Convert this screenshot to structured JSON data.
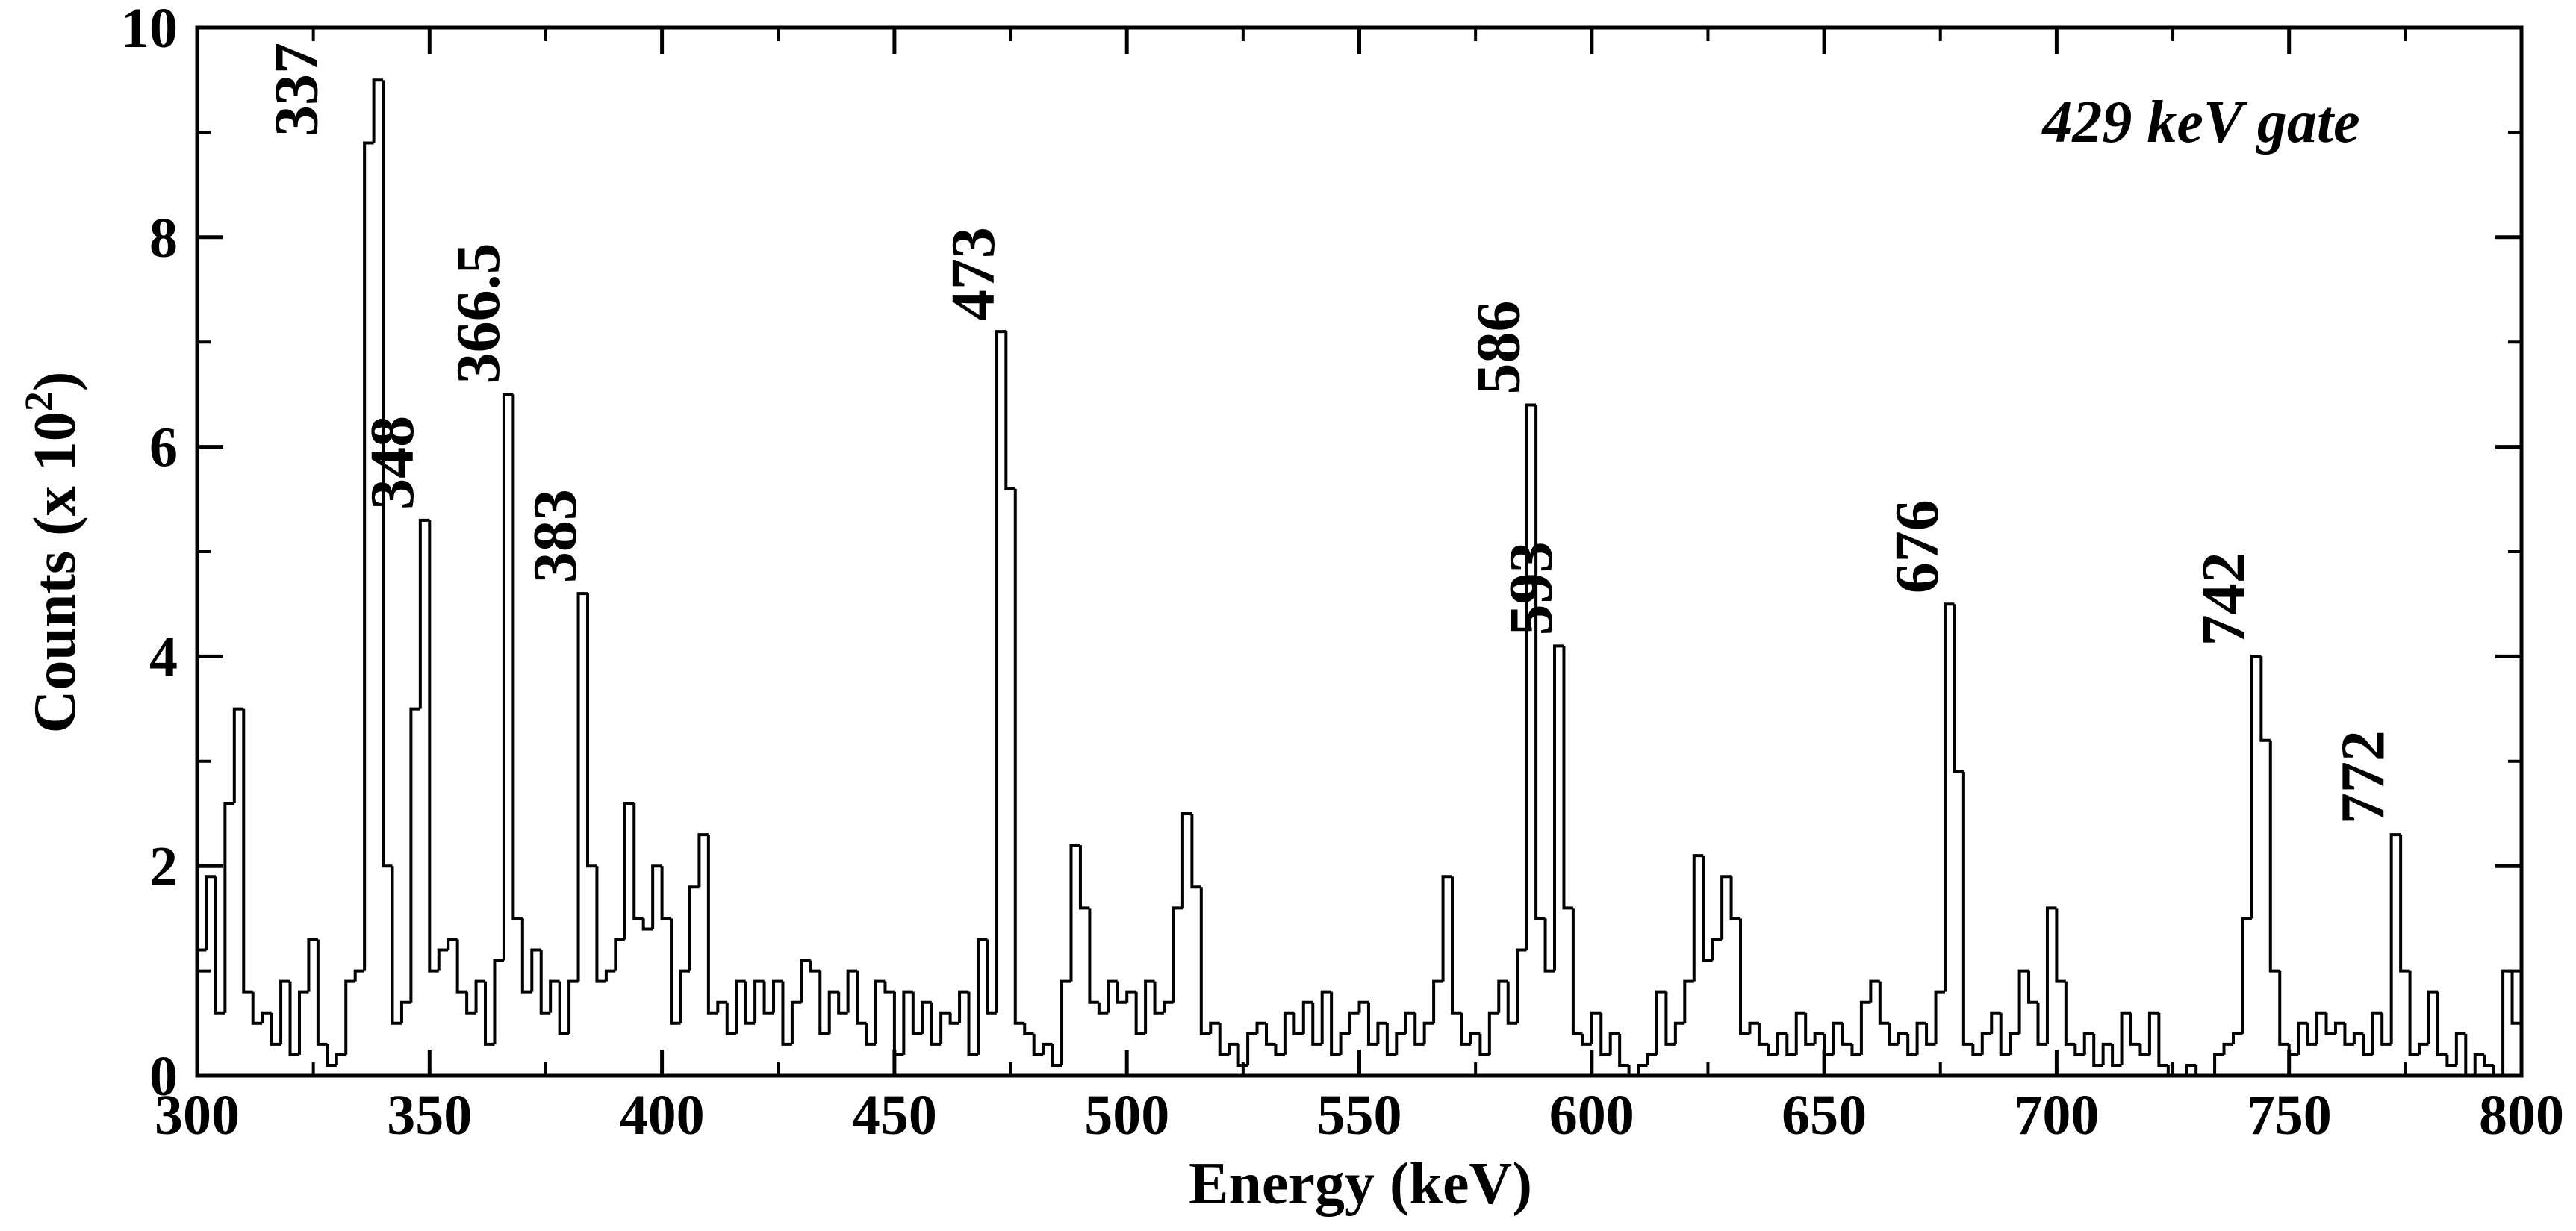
{
  "chart_data": {
    "type": "histogram",
    "xlabel": "Energy (keV)",
    "ylabel": {
      "text": "Counts (x 10",
      "sup": "2",
      "close": ")"
    },
    "gate_label": {
      "text": "429 keV gate",
      "color": "#0000ff"
    },
    "color": "#000000",
    "xlim": [
      300,
      800
    ],
    "ylim": [
      0,
      10
    ],
    "xticks": [
      300,
      350,
      400,
      450,
      500,
      550,
      600,
      650,
      700,
      750,
      800
    ],
    "xminor": [
      325,
      375,
      425,
      475,
      525,
      575,
      625,
      675,
      725,
      775
    ],
    "yticks": [
      0,
      2,
      4,
      6,
      8,
      10
    ],
    "yminor": [
      1,
      3,
      5,
      7,
      9
    ],
    "annotations": [
      {
        "text": "337",
        "color": "#000000"
      },
      {
        "text": "348",
        "color": "#ff0000"
      },
      {
        "text": "366.5",
        "color": "#ff0000"
      },
      {
        "text": "383",
        "color": "#ff0000"
      },
      {
        "text": "473",
        "color": "#000000"
      },
      {
        "text": "586",
        "color": "#000000"
      },
      {
        "text": "593",
        "color": "#ff0000"
      },
      {
        "text": "676",
        "color": "#000000"
      },
      {
        "text": "742",
        "color": "#000000"
      },
      {
        "text": "772",
        "color": "#ff0000"
      }
    ],
    "bins": [
      300,
      302,
      304,
      306,
      308,
      310,
      312,
      314,
      316,
      318,
      320,
      322,
      324,
      326,
      328,
      330,
      332,
      334,
      336,
      338,
      340,
      342,
      344,
      346,
      348,
      350,
      352,
      354,
      356,
      358,
      360,
      362,
      364,
      366,
      368,
      370,
      372,
      374,
      376,
      378,
      380,
      382,
      384,
      386,
      388,
      390,
      392,
      394,
      396,
      398,
      400,
      402,
      404,
      406,
      408,
      410,
      412,
      414,
      416,
      418,
      420,
      422,
      424,
      426,
      428,
      430,
      432,
      434,
      436,
      438,
      440,
      442,
      444,
      446,
      448,
      450,
      452,
      454,
      456,
      458,
      460,
      462,
      464,
      466,
      468,
      470,
      472,
      474,
      476,
      478,
      480,
      482,
      484,
      486,
      488,
      490,
      492,
      494,
      496,
      498,
      500,
      502,
      504,
      506,
      508,
      510,
      512,
      514,
      516,
      518,
      520,
      522,
      524,
      526,
      528,
      530,
      532,
      534,
      536,
      538,
      540,
      542,
      544,
      546,
      548,
      550,
      552,
      554,
      556,
      558,
      560,
      562,
      564,
      566,
      568,
      570,
      572,
      574,
      576,
      578,
      580,
      582,
      584,
      586,
      588,
      590,
      592,
      594,
      596,
      598,
      600,
      602,
      604,
      606,
      608,
      610,
      612,
      614,
      616,
      618,
      620,
      622,
      624,
      626,
      628,
      630,
      632,
      634,
      636,
      638,
      640,
      642,
      644,
      646,
      648,
      650,
      652,
      654,
      656,
      658,
      660,
      662,
      664,
      666,
      668,
      670,
      672,
      674,
      676,
      678,
      680,
      682,
      684,
      686,
      688,
      690,
      692,
      694,
      696,
      698,
      700,
      702,
      704,
      706,
      708,
      710,
      712,
      714,
      716,
      718,
      720,
      722,
      724,
      726,
      728,
      730,
      732,
      734,
      736,
      738,
      740,
      742,
      744,
      746,
      748,
      750,
      752,
      754,
      756,
      758,
      760,
      762,
      764,
      766,
      768,
      770,
      772,
      774,
      776,
      778,
      780,
      782,
      784,
      786,
      788,
      790,
      792,
      794,
      796,
      798,
      800
    ],
    "values": [
      1.2,
      1.9,
      0.6,
      2.6,
      3.5,
      0.8,
      0.5,
      0.6,
      0.3,
      0.9,
      0.2,
      0.8,
      1.3,
      0.3,
      0.1,
      0.2,
      0.9,
      1.0,
      8.9,
      9.5,
      2.0,
      0.5,
      0.7,
      3.5,
      5.3,
      1.0,
      1.2,
      1.3,
      0.8,
      0.6,
      0.9,
      0.3,
      1.1,
      6.5,
      1.5,
      0.8,
      1.2,
      0.6,
      0.9,
      0.4,
      0.9,
      4.6,
      2.0,
      0.9,
      1.0,
      1.3,
      2.6,
      1.5,
      1.4,
      2.0,
      1.5,
      0.5,
      1.0,
      1.8,
      2.3,
      0.6,
      0.7,
      0.4,
      0.9,
      0.5,
      0.9,
      0.6,
      0.9,
      0.3,
      0.7,
      1.1,
      1.0,
      0.4,
      0.8,
      0.6,
      1.0,
      0.5,
      0.3,
      0.9,
      0.8,
      0.2,
      0.8,
      0.4,
      0.7,
      0.3,
      0.6,
      0.5,
      0.8,
      0.2,
      1.3,
      0.6,
      7.1,
      5.6,
      0.5,
      0.4,
      0.2,
      0.3,
      0.1,
      0.9,
      2.2,
      1.6,
      0.7,
      0.6,
      0.9,
      0.7,
      0.8,
      0.4,
      0.9,
      0.6,
      0.7,
      1.6,
      2.5,
      1.8,
      0.4,
      0.5,
      0.2,
      0.3,
      0.1,
      0.4,
      0.5,
      0.3,
      0.2,
      0.6,
      0.4,
      0.7,
      0.3,
      0.8,
      0.2,
      0.4,
      0.6,
      0.7,
      0.3,
      0.5,
      0.2,
      0.4,
      0.6,
      0.3,
      0.5,
      0.9,
      1.9,
      0.6,
      0.3,
      0.4,
      0.2,
      0.6,
      0.9,
      0.5,
      1.2,
      6.4,
      1.5,
      1.0,
      4.1,
      1.6,
      0.4,
      0.3,
      0.6,
      0.2,
      0.4,
      0.1,
      0.0,
      0.1,
      0.2,
      0.8,
      0.3,
      0.5,
      0.9,
      2.1,
      1.1,
      1.3,
      1.9,
      1.5,
      0.4,
      0.5,
      0.3,
      0.2,
      0.4,
      0.2,
      0.6,
      0.3,
      0.4,
      0.2,
      0.5,
      0.3,
      0.2,
      0.7,
      0.9,
      0.5,
      0.3,
      0.4,
      0.2,
      0.5,
      0.3,
      0.8,
      4.5,
      2.9,
      0.3,
      0.2,
      0.4,
      0.6,
      0.2,
      0.4,
      1.0,
      0.7,
      0.3,
      1.6,
      0.9,
      0.3,
      0.2,
      0.4,
      0.1,
      0.3,
      0.1,
      0.6,
      0.3,
      0.2,
      0.6,
      0.1,
      0.0,
      0.0,
      0.1,
      0.0,
      0.0,
      0.2,
      0.3,
      0.4,
      1.5,
      4.0,
      3.2,
      1.0,
      0.3,
      0.2,
      0.5,
      0.3,
      0.6,
      0.4,
      0.5,
      0.3,
      0.4,
      0.2,
      0.6,
      0.3,
      2.3,
      1.0,
      0.2,
      0.3,
      0.8,
      0.2,
      0.1,
      0.4,
      0.0,
      0.2,
      0.1,
      0.0,
      1.0,
      0.5
    ]
  }
}
